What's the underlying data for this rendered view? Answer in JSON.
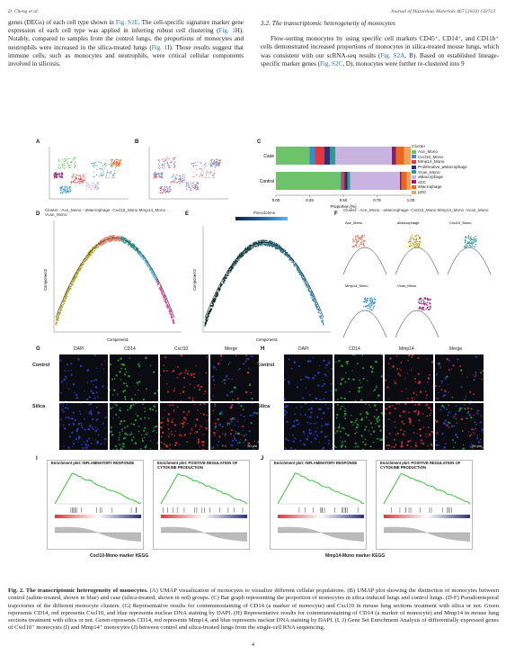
{
  "header": {
    "authors": "D. Cheng et al.",
    "journal": "Journal of Hazardous Materials 467 (2024) 133713"
  },
  "left_column": {
    "text_a": "genes (DEGs) of each cell type shown in ",
    "link_a": "Fig. S1E",
    "text_b": ". The cell-specific signature marker gene expression of each cell type was applied in inferring robust cell clustering (",
    "link_b": "Fig. 1",
    "text_c": "H). Notably, compared to samples from the control lungs, the proportions of monocytes and neutrophils were increased in the silica-treated lungs (",
    "link_c": "Fig. 1",
    "text_d": "I). Those results suggest that immune cells, such as monocytes and neutrophils, were critical cellular components involved in silicosis."
  },
  "right_column": {
    "section_heading": "3.2.  The transcriptomic heterogeneity of monocytes",
    "text_a": "Flow-sorting monocytes by using specific cell markers CD45⁺, CD14⁺, and CD11b⁺ cells demonstrated increased proportions of monocytes in silica-treated mouse lungs, which was consistent with our scRNA-seq results (",
    "link_a": "Fig. S2A",
    "text_b": ", B). Based on established lineage-specific marker genes (",
    "link_b": "Fig. S2C",
    "text_c": ", D), monocytes were further re-clustered into 9"
  },
  "figure": {
    "panel_letters": [
      "A",
      "B",
      "C",
      "D",
      "E",
      "F",
      "G",
      "H",
      "I",
      "J"
    ],
    "panel_c": {
      "row_labels": [
        "Case",
        "Control"
      ],
      "x_ticks": [
        "0.00",
        "0.25",
        "0.50",
        "0.75",
        "1.00"
      ],
      "x_label": "Proportion [%]",
      "legend_title": "Cluster",
      "legend": [
        {
          "name": "Ace_Mono",
          "color": "#6cc36a"
        },
        {
          "name": "Cxcl10_Mono",
          "color": "#2f8fd0"
        },
        {
          "name": "Mmp14_Mono",
          "color": "#e2373d"
        },
        {
          "name": "Proliferative_aMacrophage",
          "color": "#2c2f80"
        },
        {
          "name": "Vcan_Mono",
          "color": "#2f9a8e"
        },
        {
          "name": "aMacrophage",
          "color": "#c9b3e0"
        },
        {
          "name": "cDC",
          "color": "#8a1d6e"
        },
        {
          "name": "iMacrophage",
          "color": "#e9681b"
        },
        {
          "name": "pDC",
          "color": "#f0a35a"
        }
      ],
      "case": [
        0.25,
        0.04,
        0.07,
        0.04,
        0.04,
        0.42,
        0.03,
        0.06,
        0.05
      ],
      "control": [
        0.48,
        0.01,
        0.02,
        0.02,
        0.02,
        0.37,
        0.01,
        0.04,
        0.03
      ]
    },
    "panel_d": {
      "title": "Cluster  - Ace_Mono  - aMacrophage  -Cxcl10_Mono  Mmp14_Mono  -Vcan_Mono",
      "xlabel": "Component1",
      "ylabel": "Component2",
      "x_ticks": [
        "-10",
        "0",
        "10",
        "20"
      ]
    },
    "panel_e": {
      "title": "Pseudotime",
      "scale_ticks": [
        "0",
        "10",
        "20",
        "30",
        "40"
      ],
      "xlabel": "Component1",
      "ylabel": "Component2",
      "x_ticks": [
        "-10",
        "0",
        "10",
        "20"
      ]
    },
    "panel_f": {
      "title": "Cluster  - Ace_Mono  - aMacrophage  -Cxcl10_Mono  Mmp14_Mono  -Vcan_Mono",
      "subtitles": [
        "Ace_Mono",
        "aMacrophage",
        "Cxcl10_Mono",
        "Mmp14_Mono",
        "Vcan_Mono"
      ],
      "xlabel": "Component1",
      "ylabel": "Component2"
    },
    "panel_g": {
      "columns": [
        "DAPI",
        "CD14",
        "Cxcl10",
        "Merge"
      ],
      "rows": [
        "Control",
        "Silica"
      ],
      "scale": "50 μm"
    },
    "panel_h": {
      "columns": [
        "DAPI",
        "CD14",
        "Mmp14",
        "Merge"
      ],
      "rows": [
        "Control",
        "Silica"
      ],
      "scale": "50 μm"
    },
    "panel_i": {
      "plots": [
        "Enrichment plot: INFLAMMATORY RESPONSE",
        "Enrichment plot: POSITIVE REGULATION OF CYTOKINE PRODUCTION"
      ],
      "footer": "Cxcl10-Mono marker KEGG"
    },
    "panel_j": {
      "plots": [
        "Enrichment plot: INFLAMMATORY RESPONSE",
        "Enrichment plot: POSITIVE REGULATION OF CYTOKINE PRODUCTION"
      ],
      "footer": "Mmp14-Mono marker KEGG"
    }
  },
  "caption": {
    "label": "Fig. 2.  The transcriptomic heterogeneity of monocytes.",
    "text": " (A) UMAP visualization of monocytes to visualize different cellular populations. (B) UMAP plot showing the distinction of monocytes between control (saline-treated, shown in blue) and case (silica-treated, shown in red) groups. (C) Bar graph representing the proportion of monocytes in silica-induced lungs and control lungs. (D-F) Pseudotemporal trajectories of the different monocyte clusters. (G) Representative results for coimmunostaining of CD14 (a marker of monocyte) and Cxcl10 in mouse lung sections treatment with silica or not. Green represents CD14, red represents Cxcl10, and blue represents nuclear DNA staining by DAPI. (H) Representative results for coimmunostaining of CD14 (a marker of monocyte) and Mmp14 in mouse lung sections treatment with silica or not. Green represents CD14, red represents Mmp14, and blue represents nuclear DNA staining by DAPI. (I, J) Gene Set Enrichment Analysis of differentially expressed genes of Cxcl10⁺ monocytes (I) and Mmp14⁺ monocytes (J) between control and silica-treated lungs from the single-cell RNA sequencing."
  },
  "page_number": "4"
}
